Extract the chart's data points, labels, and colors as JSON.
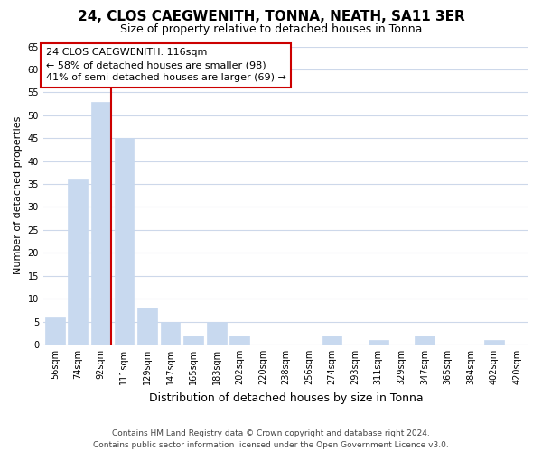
{
  "title": "24, CLOS CAEGWENITH, TONNA, NEATH, SA11 3ER",
  "subtitle": "Size of property relative to detached houses in Tonna",
  "xlabel": "Distribution of detached houses by size in Tonna",
  "ylabel": "Number of detached properties",
  "bar_labels": [
    "56sqm",
    "74sqm",
    "92sqm",
    "111sqm",
    "129sqm",
    "147sqm",
    "165sqm",
    "183sqm",
    "202sqm",
    "220sqm",
    "238sqm",
    "256sqm",
    "274sqm",
    "293sqm",
    "311sqm",
    "329sqm",
    "347sqm",
    "365sqm",
    "384sqm",
    "402sqm",
    "420sqm"
  ],
  "bar_values": [
    6,
    36,
    53,
    45,
    8,
    5,
    2,
    5,
    2,
    0,
    0,
    0,
    2,
    0,
    1,
    0,
    2,
    0,
    0,
    1,
    0
  ],
  "bar_color": "#c8d9ef",
  "vline_color": "#cc0000",
  "vline_bar_index": 2,
  "ylim": [
    0,
    65
  ],
  "yticks": [
    0,
    5,
    10,
    15,
    20,
    25,
    30,
    35,
    40,
    45,
    50,
    55,
    60,
    65
  ],
  "annotation_title": "24 CLOS CAEGWENITH: 116sqm",
  "annotation_line1": "← 58% of detached houses are smaller (98)",
  "annotation_line2": "41% of semi-detached houses are larger (69) →",
  "annotation_box_facecolor": "#ffffff",
  "annotation_box_edgecolor": "#cc0000",
  "footer_line1": "Contains HM Land Registry data © Crown copyright and database right 2024.",
  "footer_line2": "Contains public sector information licensed under the Open Government Licence v3.0.",
  "background_color": "#ffffff",
  "grid_color": "#cdd8ea",
  "title_fontsize": 11,
  "subtitle_fontsize": 9,
  "ylabel_fontsize": 8,
  "xlabel_fontsize": 9,
  "tick_fontsize": 7,
  "annotation_fontsize": 8,
  "footer_fontsize": 6.5
}
